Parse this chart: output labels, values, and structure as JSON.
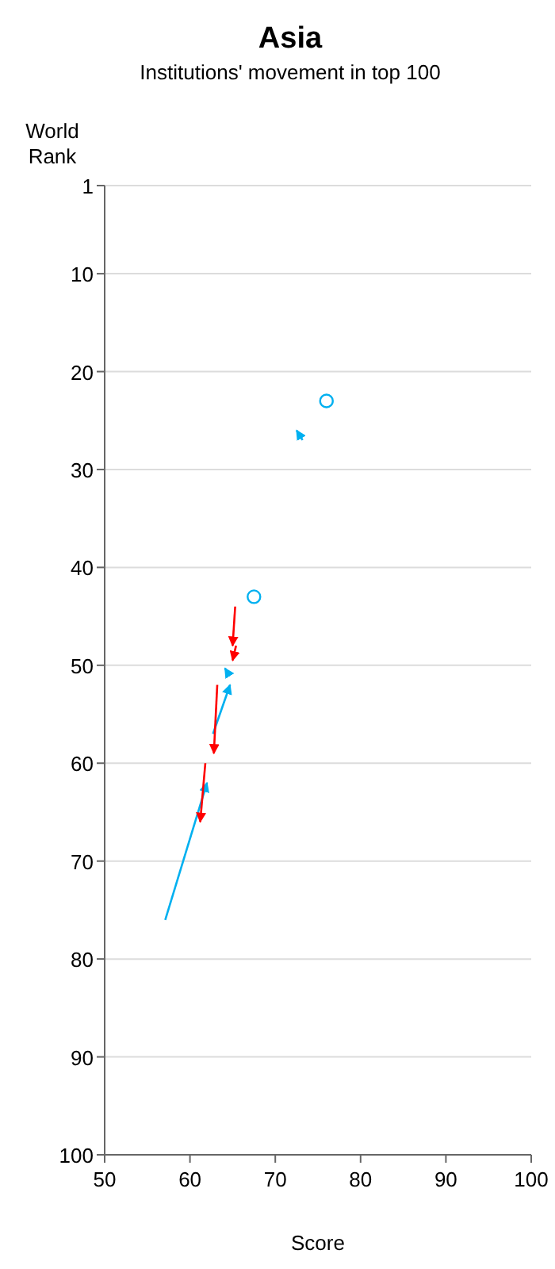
{
  "chart_data": {
    "type": "line",
    "title": "Asia",
    "subtitle": "Institutions' movement in top 100",
    "xlabel": "Score",
    "ylabel": "World Rank",
    "xlim": [
      50,
      100
    ],
    "xticks": [
      50,
      60,
      70,
      80,
      90,
      100
    ],
    "ylim": [
      100,
      1
    ],
    "yticks": [
      1,
      10,
      20,
      30,
      40,
      50,
      60,
      70,
      80,
      90,
      100
    ],
    "grid": "y",
    "series": [
      {
        "color": "#00b0f0",
        "x": [
          73.2,
          72.5
        ],
        "values": [
          27,
          26
        ],
        "marker": "none"
      },
      {
        "color": "#ff0000",
        "x": [
          65.3,
          65
        ],
        "values": [
          44,
          48
        ],
        "marker": "none"
      },
      {
        "color": "#ff0000",
        "x": [
          65.4,
          65
        ],
        "values": [
          48,
          49.5
        ],
        "marker": "none"
      },
      {
        "color": "#00b0f0",
        "x": [
          64.6,
          64.1
        ],
        "values": [
          51,
          50.3
        ],
        "marker": "none"
      },
      {
        "color": "#00b0f0",
        "x": [
          62.7,
          64.7
        ],
        "values": [
          57,
          52
        ],
        "marker": "none"
      },
      {
        "color": "#ff0000",
        "x": [
          63.2,
          62.8
        ],
        "values": [
          52,
          59
        ],
        "marker": "none"
      },
      {
        "color": "#00b0f0",
        "x": [
          57.1,
          62
        ],
        "values": [
          76,
          62
        ],
        "marker": "none"
      },
      {
        "color": "#ff0000",
        "x": [
          61.8,
          61.2
        ],
        "values": [
          60,
          66
        ],
        "marker": "none"
      },
      {
        "type": "scatter",
        "color": "#00b0f0",
        "x": [
          76,
          67.5
        ],
        "values": [
          23,
          43
        ],
        "marker": "circle"
      }
    ]
  }
}
